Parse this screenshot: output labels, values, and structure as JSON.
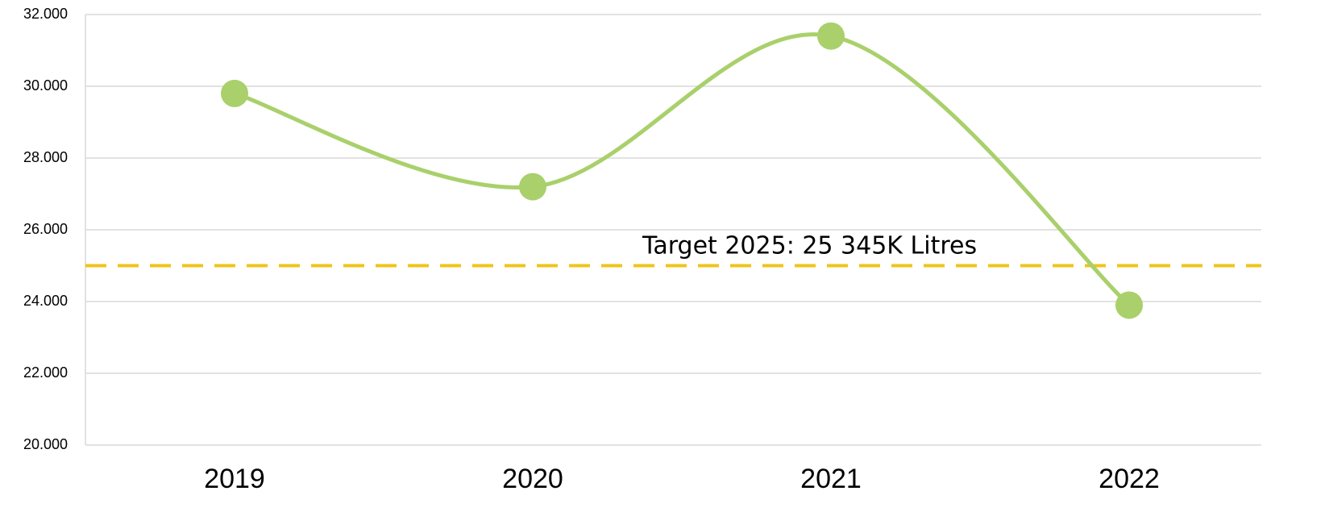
{
  "chart_data": {
    "type": "line",
    "categories": [
      "2019",
      "2020",
      "2021",
      "2022"
    ],
    "series": [
      {
        "color": "#a9d06b",
        "values": [
          29800,
          27200,
          31400,
          23900
        ]
      }
    ],
    "ylim": [
      20000,
      32000
    ],
    "yticks": [
      {
        "value": 20000,
        "label": "20.000"
      },
      {
        "value": 22000,
        "label": "22.000"
      },
      {
        "value": 24000,
        "label": "24.000"
      },
      {
        "value": 26000,
        "label": "26.000"
      },
      {
        "value": 28000,
        "label": "28.000"
      },
      {
        "value": 30000,
        "label": "30.000"
      },
      {
        "value": 32000,
        "label": "32.000"
      }
    ],
    "grid": true,
    "smooth": true,
    "reference_line": {
      "value": 25000,
      "color": "#f0c419",
      "label": "Target 2025: 25 345K Litres"
    }
  }
}
